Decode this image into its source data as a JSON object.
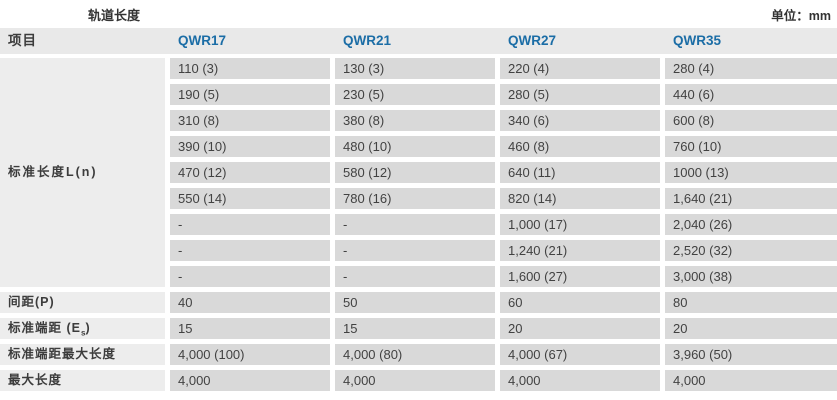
{
  "title": "轨道长度",
  "unit_label": "单位：mm",
  "colors": {
    "header_bg": "#e9e9e9",
    "label_cell_bg": "#ededed",
    "value_cell_bg": "#d9d9d9",
    "column_header_text": "#1b6da6",
    "text_dark": "#3c3c3c"
  },
  "table": {
    "header": {
      "item_label": "项目",
      "columns": [
        "QWR17",
        "QWR21",
        "QWR27",
        "QWR35"
      ]
    },
    "standard_length": {
      "label": "标准长度L(n)",
      "rows": [
        [
          "110 (3)",
          "130 (3)",
          "220 (4)",
          "280 (4)"
        ],
        [
          "190 (5)",
          "230 (5)",
          "280 (5)",
          "440 (6)"
        ],
        [
          "310 (8)",
          "380 (8)",
          "340 (6)",
          "600 (8)"
        ],
        [
          "390 (10)",
          "480 (10)",
          "460 (8)",
          "760 (10)"
        ],
        [
          "470 (12)",
          "580 (12)",
          "640 (11)",
          "1000 (13)"
        ],
        [
          "550 (14)",
          "780 (16)",
          "820 (14)",
          "1,640 (21)"
        ],
        [
          "-",
          "-",
          "1,000 (17)",
          "2,040 (26)"
        ],
        [
          "-",
          "-",
          "1,240 (21)",
          "2,520 (32)"
        ],
        [
          "-",
          "-",
          "1,600 (27)",
          "3,000 (38)"
        ]
      ]
    },
    "footer_rows": [
      {
        "label": "间距(P)",
        "values": [
          "40",
          "50",
          "60",
          "80"
        ]
      },
      {
        "label_pre": "标准端距 (E",
        "label_sub": "s",
        "label_post": ")",
        "values": [
          "15",
          "15",
          "20",
          "20"
        ]
      },
      {
        "label": "标准端距最大长度",
        "values": [
          "4,000 (100)",
          "4,000 (80)",
          "4,000 (67)",
          "3,960 (50)"
        ]
      },
      {
        "label": "最大长度",
        "values": [
          "4,000",
          "4,000",
          "4,000",
          "4,000"
        ]
      }
    ]
  }
}
